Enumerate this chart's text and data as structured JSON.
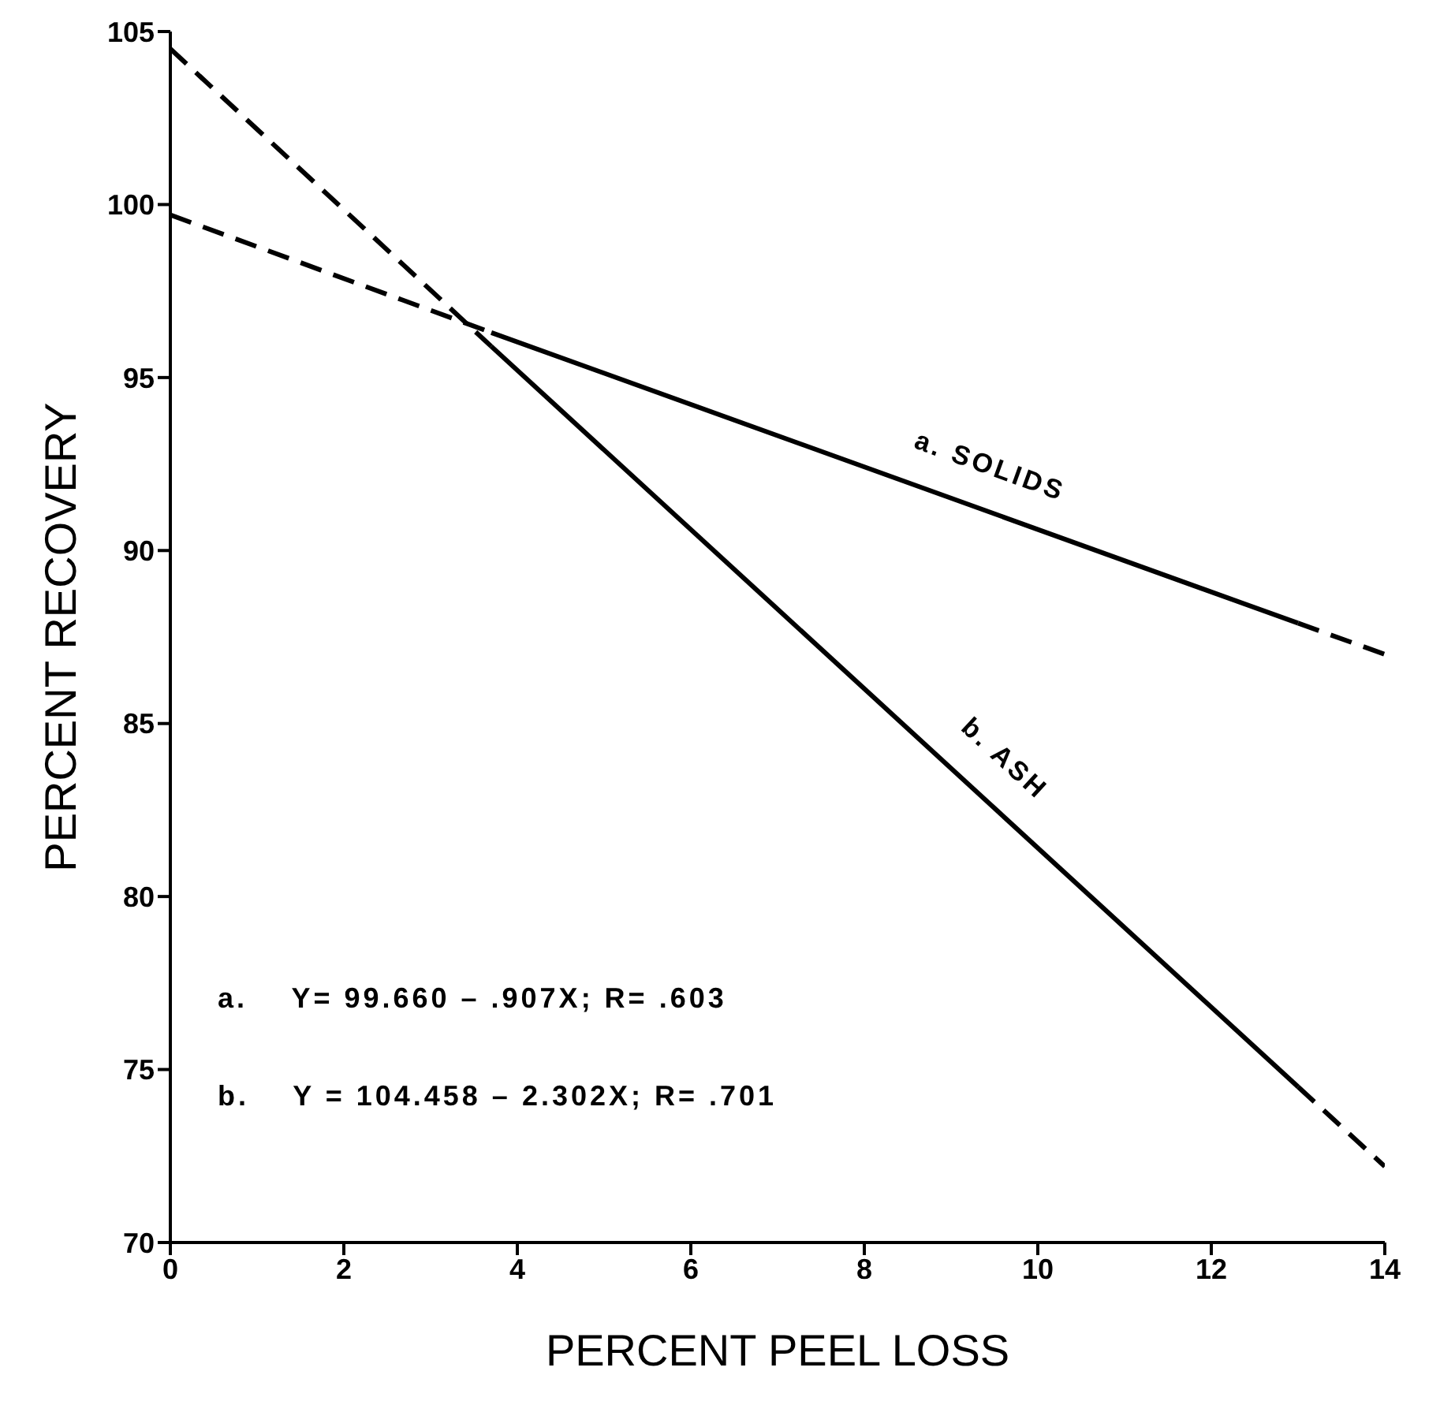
{
  "chart_data": {
    "type": "line",
    "xlabel": "PERCENT PEEL LOSS",
    "ylabel": "PERCENT RECOVERY",
    "xlim": [
      0,
      14
    ],
    "xticks": [
      0,
      2,
      4,
      6,
      8,
      10,
      12,
      14
    ],
    "ylim": [
      70,
      105
    ],
    "yticks": [
      70,
      75,
      80,
      85,
      90,
      95,
      100,
      105
    ],
    "marker": "none",
    "line_style": "solid",
    "series": [
      {
        "name": "a. SOLIDS",
        "color": "#000000",
        "x": [
          3.7,
          13
        ],
        "values": [
          96.3,
          87.9
        ]
      },
      {
        "color": "#000000",
        "x": [
          0,
          3.7
        ],
        "values": [
          99.7,
          96.3
        ],
        "line_style": "dashed"
      },
      {
        "color": "#000000",
        "x": [
          13,
          14
        ],
        "values": [
          87.9,
          87.0
        ],
        "line_style": "dashed"
      },
      {
        "name": "b. ASH",
        "color": "#000000",
        "x": [
          3.7,
          13
        ],
        "values": [
          95.9,
          74.5
        ]
      },
      {
        "color": "#000000",
        "x": [
          0,
          3.7
        ],
        "values": [
          104.5,
          95.9
        ],
        "line_style": "dashed"
      },
      {
        "color": "#000000",
        "x": [
          13,
          14
        ],
        "values": [
          74.5,
          72.2
        ],
        "line_style": "dashed"
      }
    ],
    "annotations": [
      "a.    Y= 99.660 – .907X; R= .603",
      "b.    Y = 104.458 – 2.302X; R= .701"
    ]
  }
}
